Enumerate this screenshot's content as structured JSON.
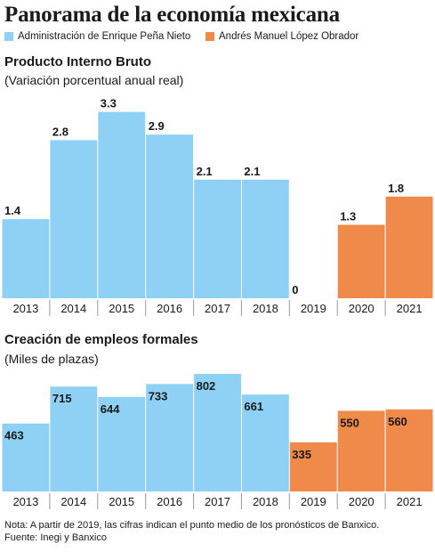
{
  "title": "Panorama de la economía mexicana",
  "legend": [
    {
      "label": "Administración de Enrique Peña Nieto",
      "color": "#8fd1f4"
    },
    {
      "label": "Andrés Manuel López Obrador",
      "color": "#f08a4b"
    }
  ],
  "chart_data": [
    {
      "type": "bar",
      "title": "Producto Interno Bruto",
      "subtitle": "(Variación porcentual anual real)",
      "categories": [
        "2013",
        "2014",
        "2015",
        "2016",
        "2017",
        "2018",
        "2019",
        "2020",
        "2021"
      ],
      "series": [
        {
          "name": "Administración de Enrique Peña Nieto",
          "color": "#8fd1f4",
          "values": [
            1.4,
            2.8,
            3.3,
            2.9,
            2.1,
            2.1,
            null,
            null,
            null
          ]
        },
        {
          "name": "Andrés Manuel López Obrador",
          "color": "#f08a4b",
          "values": [
            null,
            null,
            null,
            null,
            null,
            null,
            0,
            1.3,
            1.8
          ]
        }
      ],
      "data_labels": [
        "1.4",
        "2.8",
        "3.3",
        "2.9",
        "2.1",
        "2.1",
        "0",
        "1.3",
        "1.8"
      ],
      "ylim": [
        0,
        3.5
      ],
      "grid": false,
      "legend": "top-left"
    },
    {
      "type": "bar",
      "title": "Creación de empleos formales",
      "subtitle": "(Miles de plazas)",
      "categories": [
        "2013",
        "2014",
        "2015",
        "2016",
        "2017",
        "2018",
        "2019",
        "2020",
        "2021"
      ],
      "series": [
        {
          "name": "Administración de Enrique Peña Nieto",
          "color": "#8fd1f4",
          "values": [
            463,
            715,
            644,
            733,
            802,
            661,
            null,
            null,
            null
          ]
        },
        {
          "name": "Andrés Manuel López Obrador",
          "color": "#f08a4b",
          "values": [
            null,
            null,
            null,
            null,
            null,
            null,
            335,
            550,
            560
          ]
        }
      ],
      "data_labels": [
        "463",
        "715",
        "644",
        "733",
        "802",
        "661",
        "335",
        "550",
        "560"
      ],
      "ylim": [
        0,
        850
      ],
      "grid": false,
      "legend": "top-left"
    }
  ],
  "note": "Nota: A partir de 2019, las cifras indican el punto medio de los pronósticos de Banxico.",
  "source": "Fuente: Inegi y Banxico"
}
